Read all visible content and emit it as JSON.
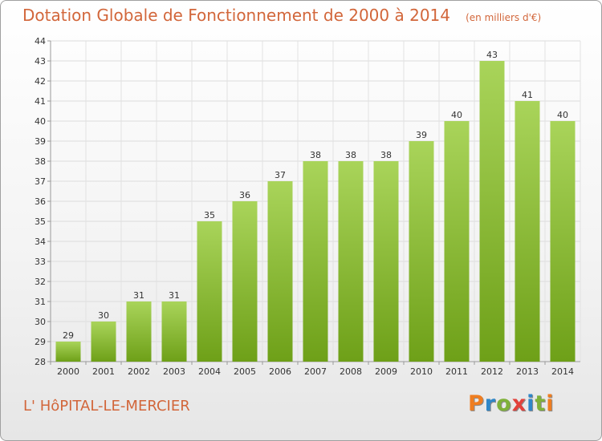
{
  "title": "Dotation Globale de Fonctionnement de 2000 à 2014",
  "unit": "(en milliers d'€)",
  "commune": "L' HôPITAL-LE-MERCIER",
  "brand": {
    "letters": [
      "P",
      "r",
      "o",
      "x",
      "i",
      "t",
      "i"
    ],
    "colors": [
      "#ef7d20",
      "#2f87c8",
      "#7fb13a",
      "#e2413b",
      "#2f87c8",
      "#7fb13a",
      "#ef7d20"
    ]
  },
  "colors": {
    "bar_light": "#a9d45a",
    "bar_dark": "#6ea018",
    "text": "#d2663a"
  },
  "chart_data": {
    "type": "bar",
    "categories": [
      "2000",
      "2001",
      "2002",
      "2003",
      "2004",
      "2005",
      "2006",
      "2007",
      "2008",
      "2009",
      "2010",
      "2011",
      "2012",
      "2013",
      "2014"
    ],
    "values": [
      29,
      30,
      31,
      31,
      35,
      36,
      37,
      38,
      38,
      38,
      39,
      40,
      43,
      41,
      40
    ],
    "ylim": [
      28,
      44
    ],
    "yticks": [
      28,
      29,
      30,
      31,
      32,
      33,
      34,
      35,
      36,
      37,
      38,
      39,
      40,
      41,
      42,
      43,
      44
    ],
    "grid": true,
    "data_labels": true
  }
}
